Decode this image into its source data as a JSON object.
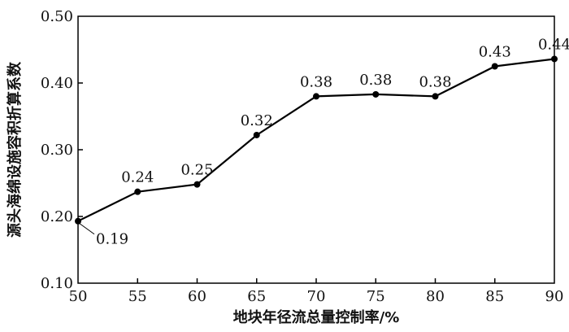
{
  "chart_data": {
    "type": "line",
    "title": "",
    "xlabel": "地块年径流总量控制率/%",
    "ylabel": "源头海绵设施容积折算系数",
    "x": [
      50,
      55,
      60,
      65,
      70,
      75,
      80,
      85,
      90
    ],
    "series": [
      {
        "values": [
          0.19,
          0.24,
          0.25,
          0.32,
          0.38,
          0.38,
          0.38,
          0.43,
          0.44
        ],
        "point_values": [
          0.193,
          0.237,
          0.248,
          0.322,
          0.38,
          0.383,
          0.38,
          0.425,
          0.436
        ],
        "labels": [
          "0.19",
          "0.24",
          "0.25",
          "0.32",
          "0.38",
          "0.38",
          "0.38",
          "0.43",
          "0.44"
        ],
        "color": "#000000"
      }
    ],
    "xlim": [
      50,
      90
    ],
    "ylim": [
      0.1,
      0.5
    ],
    "x_ticks": [
      "50",
      "55",
      "60",
      "65",
      "70",
      "75",
      "80",
      "85",
      "90"
    ],
    "y_ticks": [
      "0.10",
      "0.20",
      "0.30",
      "0.40",
      "0.50"
    ],
    "grid": false,
    "legend": "none"
  }
}
